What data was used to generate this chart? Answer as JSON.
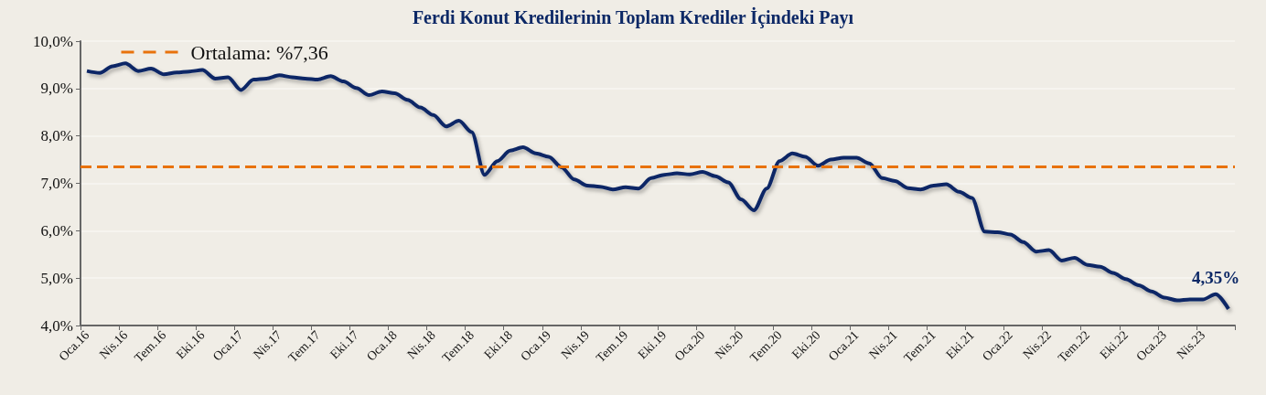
{
  "chart_data": {
    "type": "line",
    "title": "Ferdi Konut Kredilerinin Toplam Krediler İçindeki Payı",
    "categories": [
      "Oca.16",
      null,
      null,
      "Nis.16",
      null,
      null,
      "Tem.16",
      null,
      null,
      "Eki.16",
      null,
      null,
      "Oca.17",
      null,
      null,
      "Nis.17",
      null,
      null,
      "Tem.17",
      null,
      null,
      "Eki.17",
      null,
      null,
      "Oca.18",
      null,
      null,
      "Nis.18",
      null,
      null,
      "Tem.18",
      null,
      null,
      "Eki.18",
      null,
      null,
      "Oca.19",
      null,
      null,
      "Nis.19",
      null,
      null,
      "Tem.19",
      null,
      null,
      "Eki.19",
      null,
      null,
      "Oca.20",
      null,
      null,
      "Nis.20",
      null,
      null,
      "Tem.20",
      null,
      null,
      "Eki.20",
      null,
      null,
      "Oca.21",
      null,
      null,
      "Nis.21",
      null,
      null,
      "Tem.21",
      null,
      null,
      "Eki.21",
      null,
      null,
      "Oca.22",
      null,
      null,
      "Nis.22",
      null,
      null,
      "Tem.22",
      null,
      null,
      "Eki.22",
      null,
      null,
      "Oca.23",
      null,
      null,
      "Nis.23",
      null,
      null
    ],
    "series": [
      {
        "color": "#0c2866",
        "values": [
          9.37,
          9.33,
          9.47,
          9.53,
          9.37,
          9.42,
          9.3,
          9.34,
          9.36,
          9.39,
          9.21,
          9.24,
          8.97,
          9.19,
          9.21,
          9.28,
          9.24,
          9.21,
          9.19,
          9.26,
          9.15,
          9.01,
          8.86,
          8.94,
          8.9,
          8.76,
          8.6,
          8.44,
          8.2,
          8.32,
          8.08,
          7.18,
          7.47,
          7.69,
          7.76,
          7.63,
          7.56,
          7.34,
          7.08,
          6.95,
          6.93,
          6.87,
          6.92,
          6.89,
          7.11,
          7.18,
          7.21,
          7.19,
          7.24,
          7.15,
          7.02,
          6.66,
          6.43,
          6.89,
          7.47,
          7.63,
          7.56,
          7.37,
          7.5,
          7.54,
          7.54,
          7.42,
          7.11,
          7.05,
          6.9,
          6.87,
          6.95,
          6.98,
          6.82,
          6.69,
          5.98,
          5.97,
          5.92,
          5.76,
          5.56,
          5.59,
          5.37,
          5.43,
          5.28,
          5.24,
          5.11,
          4.98,
          4.85,
          4.72,
          4.59,
          4.53,
          4.55,
          4.55,
          4.66,
          4.35
        ],
        "value_labels": [
          null,
          null,
          null,
          null,
          null,
          null,
          null,
          null,
          null,
          null,
          null,
          null,
          null,
          null,
          null,
          null,
          null,
          null,
          null,
          null,
          null,
          null,
          null,
          null,
          null,
          null,
          null,
          null,
          null,
          null,
          null,
          null,
          null,
          null,
          null,
          null,
          null,
          null,
          null,
          null,
          null,
          null,
          null,
          null,
          null,
          null,
          null,
          null,
          null,
          null,
          null,
          null,
          null,
          null,
          null,
          null,
          null,
          null,
          null,
          null,
          null,
          null,
          null,
          null,
          null,
          null,
          null,
          null,
          null,
          null,
          null,
          null,
          null,
          null,
          null,
          null,
          null,
          null,
          null,
          null,
          null,
          null,
          null,
          null,
          null,
          null,
          null,
          null,
          null,
          "4,35%"
        ]
      }
    ],
    "ylim": [
      4,
      10
    ],
    "yticks": [
      {
        "value": 4,
        "label": "4,0%"
      },
      {
        "value": 5,
        "label": "5,0%"
      },
      {
        "value": 6,
        "label": "6,0%"
      },
      {
        "value": 7,
        "label": "7,0%"
      },
      {
        "value": 8,
        "label": "8,0%"
      },
      {
        "value": 9,
        "label": "9,0%"
      },
      {
        "value": 10,
        "label": "10,0%"
      }
    ],
    "ref_lines": [
      {
        "axis": "y",
        "value": 7.36,
        "label": "Ortalama: %7,36",
        "color": "#e8720c",
        "line_style": "dashed"
      }
    ],
    "grid": "y",
    "legend": "top left",
    "line_style": "solid"
  }
}
